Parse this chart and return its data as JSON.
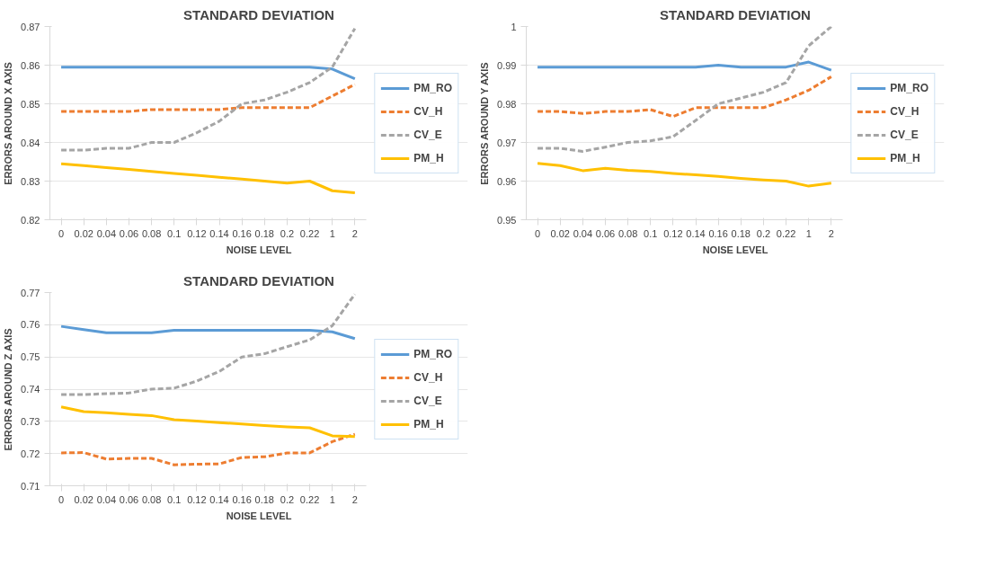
{
  "chart_data": [
    {
      "type": "line",
      "title": "STANDARD DEVIATION",
      "xlabel": "NOISE LEVEL",
      "ylabel": "ERRORS AROUND X AXIS",
      "categories": [
        "0",
        "0.02",
        "0.04",
        "0.06",
        "0.08",
        "0.1",
        "0.12",
        "0.14",
        "0.16",
        "0.18",
        "0.2",
        "0.22",
        "1",
        "2"
      ],
      "ylim": [
        0.82,
        0.87
      ],
      "yticks": [
        0.82,
        0.83,
        0.84,
        0.85,
        0.86,
        0.87
      ],
      "grid": "y",
      "legend": "right",
      "marker": "none",
      "series": [
        {
          "name": "PM_RO",
          "color": "#5b9bd5",
          "line_style": "solid",
          "values": [
            0.8595,
            0.8595,
            0.8595,
            0.8595,
            0.8595,
            0.8595,
            0.8595,
            0.8595,
            0.8595,
            0.8595,
            0.8595,
            0.8595,
            0.859,
            0.8565
          ]
        },
        {
          "name": "CV_H",
          "color": "#ed7d31",
          "line_style": "dashed",
          "values": [
            0.848,
            0.848,
            0.848,
            0.848,
            0.8485,
            0.8485,
            0.8485,
            0.8485,
            0.849,
            0.849,
            0.849,
            0.849,
            0.852,
            0.855
          ]
        },
        {
          "name": "CV_E",
          "color": "#a5a5a5",
          "line_style": "dashed",
          "values": [
            0.838,
            0.838,
            0.8385,
            0.8385,
            0.84,
            0.84,
            0.8425,
            0.8455,
            0.85,
            0.851,
            0.853,
            0.8555,
            0.8595,
            0.8695
          ]
        },
        {
          "name": "PM_H",
          "color": "#ffc000",
          "line_style": "solid",
          "values": [
            0.8345,
            0.834,
            0.8335,
            0.833,
            0.8325,
            0.832,
            0.8315,
            0.831,
            0.8305,
            0.83,
            0.8295,
            0.83,
            0.8275,
            0.827
          ]
        }
      ]
    },
    {
      "type": "line",
      "title": "STANDARD DEVIATION",
      "xlabel": "NOISE LEVEL",
      "ylabel": "ERRORS AROUND Y AXIS",
      "categories": [
        "0",
        "0.02",
        "0.04",
        "0.06",
        "0.08",
        "0.1",
        "0.12",
        "0.14",
        "0.16",
        "0.18",
        "0.2",
        "0.22",
        "1",
        "2"
      ],
      "ylim": [
        0.95,
        1
      ],
      "yticks": [
        0.95,
        0.96,
        0.97,
        0.98,
        0.99,
        1
      ],
      "grid": "y",
      "legend": "right",
      "marker": "none",
      "series": [
        {
          "name": "PM_RO",
          "color": "#5b9bd5",
          "line_style": "solid",
          "values": [
            0.9895,
            0.9895,
            0.9895,
            0.9895,
            0.9895,
            0.9895,
            0.9895,
            0.9895,
            0.99,
            0.9895,
            0.9895,
            0.9895,
            0.9908,
            0.9887
          ]
        },
        {
          "name": "CV_H",
          "color": "#ed7d31",
          "line_style": "dashed",
          "values": [
            0.978,
            0.978,
            0.9775,
            0.978,
            0.978,
            0.9785,
            0.9767,
            0.979,
            0.979,
            0.979,
            0.979,
            0.981,
            0.9835,
            0.987
          ]
        },
        {
          "name": "CV_E",
          "color": "#a5a5a5",
          "line_style": "dashed",
          "values": [
            0.9685,
            0.9685,
            0.9677,
            0.9688,
            0.97,
            0.9704,
            0.9715,
            0.9757,
            0.98,
            0.9815,
            0.983,
            0.9855,
            0.995,
            1.0
          ]
        },
        {
          "name": "PM_H",
          "color": "#ffc000",
          "line_style": "solid",
          "values": [
            0.9646,
            0.964,
            0.9627,
            0.9633,
            0.9628,
            0.9625,
            0.962,
            0.9616,
            0.9612,
            0.9607,
            0.9603,
            0.96,
            0.9587,
            0.9595
          ]
        }
      ]
    },
    {
      "type": "line",
      "title": "STANDARD DEVIATION",
      "xlabel": "NOISE LEVEL",
      "ylabel": "ERRORS AROUND Z AXIS",
      "categories": [
        "0",
        "0.02",
        "0.04",
        "0.06",
        "0.08",
        "0.1",
        "0.12",
        "0.14",
        "0.16",
        "0.18",
        "0.2",
        "0.22",
        "1",
        "2"
      ],
      "ylim": [
        0.71,
        0.77
      ],
      "yticks": [
        0.71,
        0.72,
        0.73,
        0.74,
        0.75,
        0.76,
        0.77
      ],
      "grid": "y",
      "legend": "right",
      "marker": "none",
      "series": [
        {
          "name": "PM_RO",
          "color": "#5b9bd5",
          "line_style": "solid",
          "values": [
            0.7595,
            0.7585,
            0.7575,
            0.7575,
            0.7575,
            0.7583,
            0.7583,
            0.7583,
            0.7583,
            0.7583,
            0.7583,
            0.7583,
            0.7578,
            0.7557
          ]
        },
        {
          "name": "CV_H",
          "color": "#ed7d31",
          "line_style": "dashed",
          "values": [
            0.7202,
            0.7203,
            0.7183,
            0.7185,
            0.7185,
            0.7165,
            0.7167,
            0.7168,
            0.7188,
            0.719,
            0.7202,
            0.7202,
            0.7237,
            0.726
          ]
        },
        {
          "name": "CV_E",
          "color": "#a5a5a5",
          "line_style": "dashed",
          "values": [
            0.7383,
            0.7383,
            0.7386,
            0.7388,
            0.74,
            0.7403,
            0.7425,
            0.7455,
            0.75,
            0.751,
            0.7532,
            0.7553,
            0.7597,
            0.7695
          ]
        },
        {
          "name": "PM_H",
          "color": "#ffc000",
          "line_style": "solid",
          "values": [
            0.7345,
            0.733,
            0.7327,
            0.7322,
            0.7318,
            0.7305,
            0.7301,
            0.7296,
            0.7292,
            0.7287,
            0.7283,
            0.728,
            0.7255,
            0.7253
          ]
        }
      ]
    }
  ]
}
